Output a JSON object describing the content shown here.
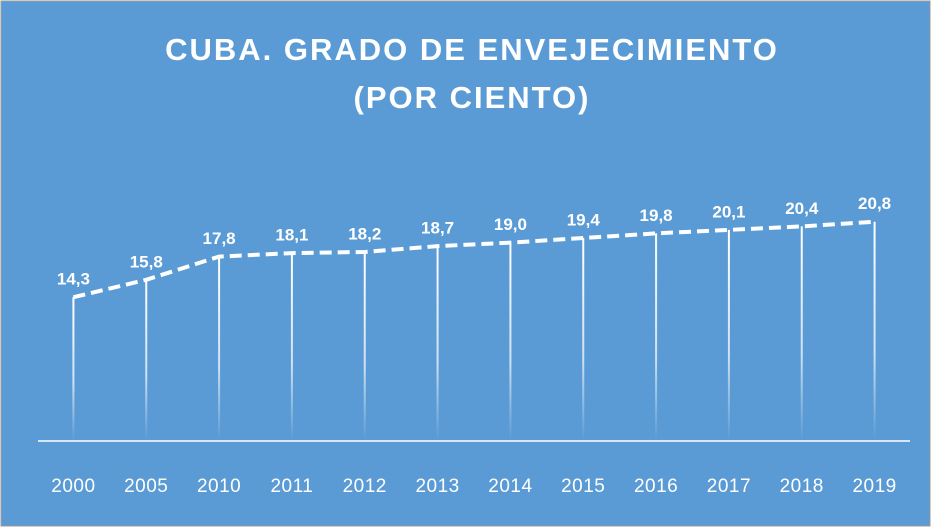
{
  "chart_data": {
    "type": "line",
    "title": [
      "CUBA. GRADO DE ENVEJECIMIENTO",
      "(POR CIENTO)"
    ],
    "categories": [
      "2000",
      "2005",
      "2010",
      "2011",
      "2012",
      "2013",
      "2014",
      "2015",
      "2016",
      "2017",
      "2018",
      "2019"
    ],
    "values": [
      14.3,
      15.8,
      17.8,
      18.1,
      18.2,
      18.7,
      19.0,
      19.4,
      19.8,
      20.1,
      20.4,
      20.8
    ],
    "value_labels": [
      "14,3",
      "15,8",
      "17,8",
      "18,1",
      "18,2",
      "18,7",
      "19,0",
      "19,4",
      "19,8",
      "20,1",
      "20,4",
      "20,8"
    ],
    "color": "#ffffff",
    "ylim": [
      2,
      25
    ]
  }
}
